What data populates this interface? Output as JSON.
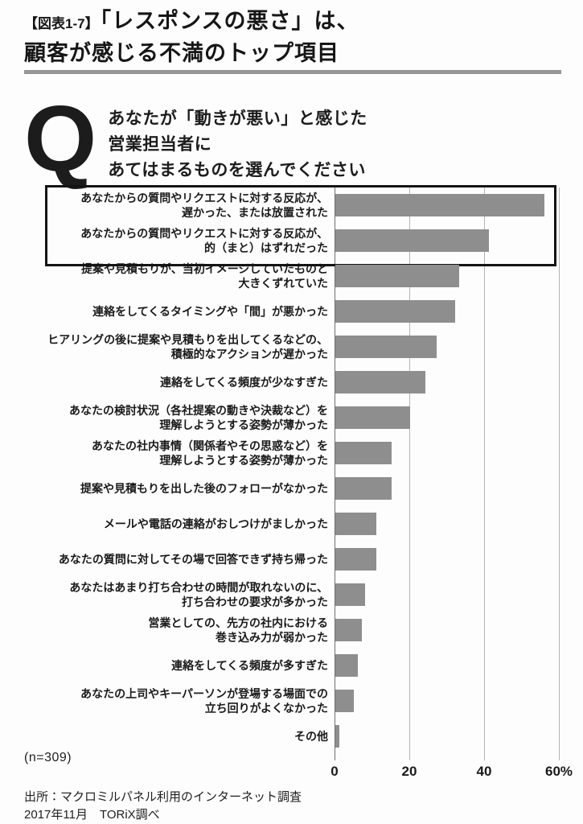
{
  "header": {
    "tag": "【図表1-7】",
    "title_line1": "「レスポンスの悪さ」は、",
    "title_line2": "顧客が感じる不満のトップ項目"
  },
  "question": {
    "mark": "Q",
    "lines": [
      "あなたが「動きが悪い」と感じた",
      "営業担当者に",
      "あてはまるものを選んでください"
    ]
  },
  "chart_data": {
    "type": "bar",
    "orientation": "horizontal",
    "title": "",
    "xlabel": "",
    "ylabel": "",
    "xlim": [
      0,
      60
    ],
    "unit": "%",
    "grid": true,
    "ticks": [
      0,
      20,
      40,
      60
    ],
    "tick_labels": [
      "0",
      "20",
      "40",
      "60%"
    ],
    "bar_color": "#8e8e8e",
    "highlight_rows": [
      0,
      1
    ],
    "n_label": "(n=309)",
    "categories": [
      [
        "あなたからの質問やリクエストに対する反応が、",
        "遅かった、または放置された"
      ],
      [
        "あなたからの質問やリクエストに対する反応が、",
        "的（まと）はずれだった"
      ],
      [
        "提案や見積もりが、当初イメージしていたものと",
        "大きくずれていた"
      ],
      [
        "連絡をしてくるタイミングや「間」が悪かった"
      ],
      [
        "ヒアリングの後に提案や見積もりを出してくるなどの、",
        "積極的なアクションが遅かった"
      ],
      [
        "連絡をしてくる頻度が少なすぎた"
      ],
      [
        "あなたの検討状況（各社提案の動きや決裁など）を",
        "理解しようとする姿勢が薄かった"
      ],
      [
        "あなたの社内事情（関係者やその思惑など）を",
        "理解しようとする姿勢が薄かった"
      ],
      [
        "提案や見積もりを出した後のフォローがなかった"
      ],
      [
        "メールや電話の連絡がおしつけがましかった"
      ],
      [
        "あなたの質問に対してその場で回答できず持ち帰った"
      ],
      [
        "あなたはあまり打ち合わせの時間が取れないのに、",
        "打ち合わせの要求が多かった"
      ],
      [
        "営業としての、先方の社内における",
        "巻き込み力が弱かった"
      ],
      [
        "連絡をしてくる頻度が多すぎた"
      ],
      [
        "あなたの上司やキーパーソンが登場する場面での",
        "立ち回りがよくなかった"
      ],
      [
        "その他"
      ]
    ],
    "values": [
      56,
      41,
      33,
      32,
      27,
      24,
      20,
      15,
      15,
      11,
      11,
      8,
      7,
      6,
      5,
      1
    ]
  },
  "footer": {
    "source_line1": "出所：マクロミルパネル利用のインターネット調査",
    "source_line2": "2017年11月　TORiX調べ"
  }
}
